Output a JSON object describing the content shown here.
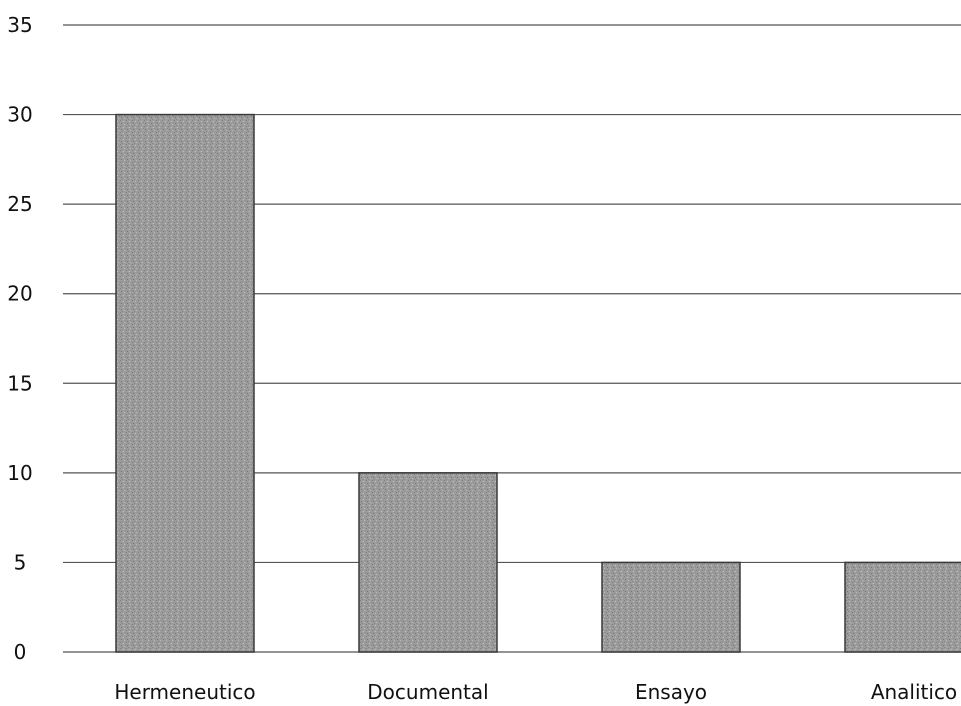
{
  "chart_data": {
    "type": "bar",
    "categories": [
      "Hermeneutico",
      "Documental",
      "Ensayo",
      "Analitico"
    ],
    "values": [
      30,
      10,
      5,
      5
    ],
    "title": "",
    "xlabel": "",
    "ylabel": "",
    "ylim": [
      0,
      35
    ],
    "yticks": [
      0,
      5,
      10,
      15,
      20,
      25,
      30,
      35
    ],
    "grid": true,
    "legend": "none",
    "colors": {
      "bar": "#9a9a9a",
      "bar_edge": "#3a3a3a",
      "grid": "#555555",
      "text": "#111111"
    }
  }
}
